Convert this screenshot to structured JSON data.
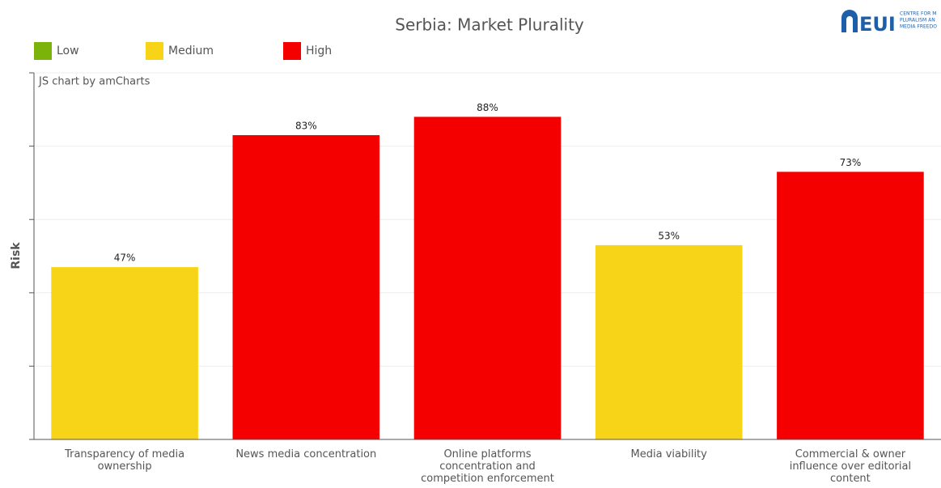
{
  "chart_data": {
    "type": "bar",
    "title": "Serbia: Market Plurality",
    "y_label": "Risk",
    "credit": "JS chart by amCharts",
    "legend": [
      {
        "name": "Low",
        "color": "#7cb30a"
      },
      {
        "name": "Medium",
        "color": "#f7d417"
      },
      {
        "name": "High",
        "color": "#f40000"
      }
    ],
    "categories": [
      "Transparency of media ownership",
      "News media concentration",
      "Online platforms concentration and competition enforcement",
      "Media viability",
      "Commercial & owner influence over editorial content"
    ],
    "values": [
      47,
      83,
      88,
      53,
      73
    ],
    "value_labels": [
      "47%",
      "83%",
      "88%",
      "53%",
      "73%"
    ],
    "colors": [
      "#f7d417",
      "#f40000",
      "#f40000",
      "#f7d417",
      "#f40000"
    ],
    "ylim": [
      0,
      100
    ],
    "yticks": [
      0,
      20,
      40,
      60,
      80,
      100
    ],
    "grid": true
  },
  "logo": {
    "text": "EUI",
    "lines": [
      "CENTRE FOR M",
      "PLURALISM AN",
      "MEDIA FREEDO"
    ]
  }
}
